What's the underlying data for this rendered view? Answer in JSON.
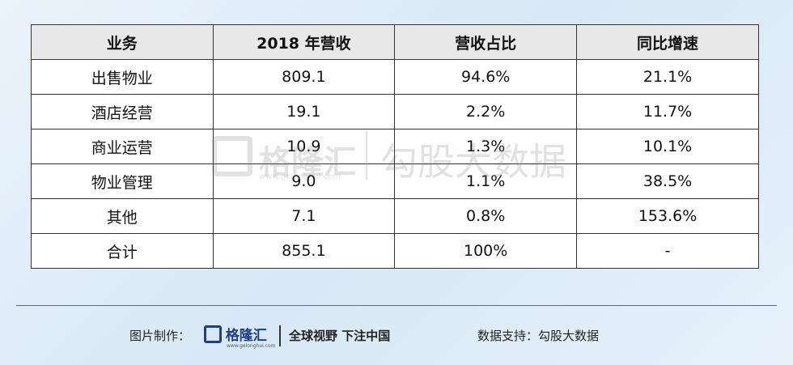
{
  "table": {
    "columns": [
      "业务",
      "2018 年营收",
      "营收占比",
      "同比增速"
    ],
    "rows": [
      [
        "出售物业",
        "809.1",
        "94.6%",
        "21.1%"
      ],
      [
        "酒店经营",
        "19.1",
        "2.2%",
        "11.7%"
      ],
      [
        "商业运营",
        "10.9",
        "1.3%",
        "10.1%"
      ],
      [
        "物业管理",
        "9.0",
        "1.1%",
        "38.5%"
      ],
      [
        "其他",
        "7.1",
        "0.8%",
        "153.6%"
      ],
      [
        "合计",
        "855.1",
        "100%",
        "-"
      ]
    ]
  },
  "watermark": {
    "brand": "格隆汇",
    "url": "www.gelonghui.com",
    "partner": "勾股大数据"
  },
  "footer": {
    "made_by_label": "图片制作：",
    "brand": "格隆汇",
    "brand_url": "www.gelonghui.com",
    "slogan": "全球视野 下注中国",
    "data_label": "数据支持：勾股大数据"
  }
}
